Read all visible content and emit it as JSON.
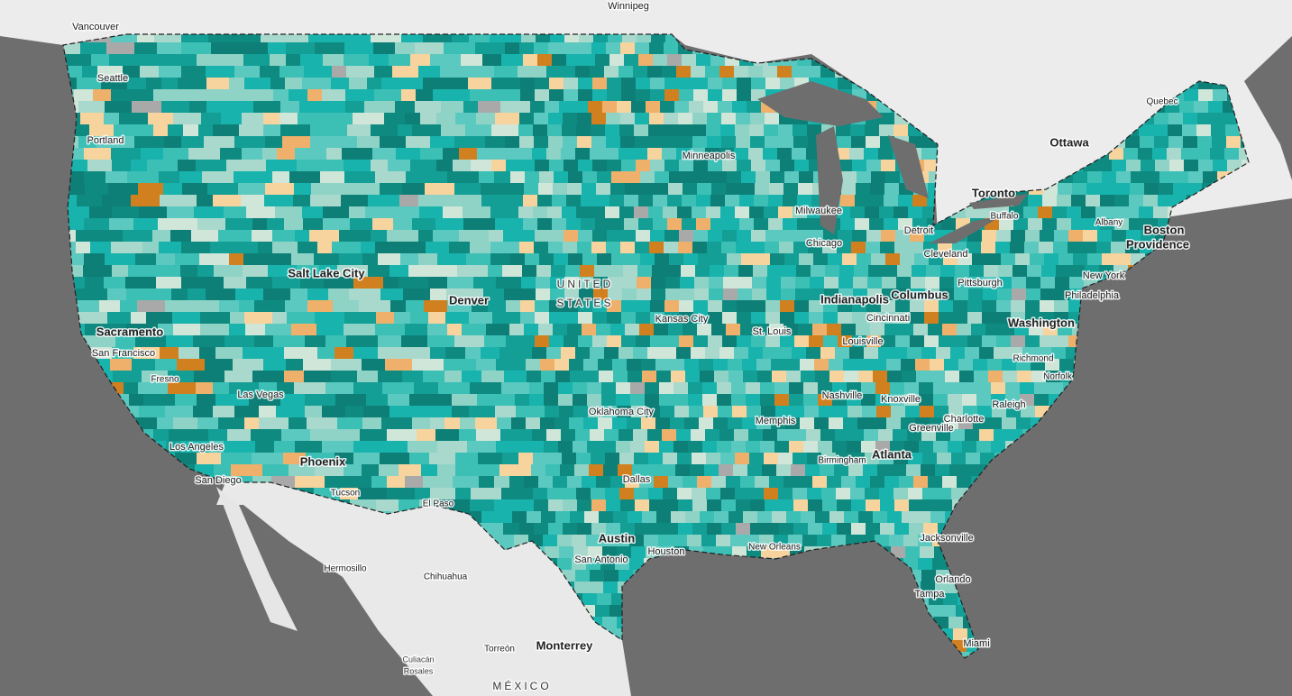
{
  "places": [
    "Vancouver",
    "Winnipeg",
    "Seattle",
    "Portland",
    "Quebec",
    "Ottawa",
    "Toronto",
    "Buffalo",
    "Albany",
    "Boston",
    "Providence",
    "Minneapolis",
    "Milwaukee",
    "Detroit",
    "Chicago",
    "Cleveland",
    "Salt Lake City",
    "Denver",
    "UNITED",
    "STATES",
    "Kansas City",
    "Pittsburgh",
    "New York",
    "Philadelphia",
    "Indianapolis",
    "Columbus",
    "Cincinnati",
    "Washington",
    "Sacramento",
    "San Francisco",
    "St. Louis",
    "Louisville",
    "Richmond",
    "Norfolk",
    "Fresno",
    "Las Vegas",
    "Nashville",
    "Knoxville",
    "Raleigh",
    "Oklahoma City",
    "Memphis",
    "Greenville",
    "Charlotte",
    "Los Angeles",
    "Birmingham",
    "Atlanta",
    "Phoenix",
    "Dallas",
    "San Diego",
    "Tucson",
    "El Paso",
    "Austin",
    "Houston",
    "San Antonio",
    "New Orleans",
    "Jacksonville",
    "Hermosillo",
    "Chihuahua",
    "Orlando",
    "Tampa",
    "Miami",
    "Monterrey",
    "Torreón",
    "Culiacán",
    "Rosales",
    "MÉXICO"
  ]
}
